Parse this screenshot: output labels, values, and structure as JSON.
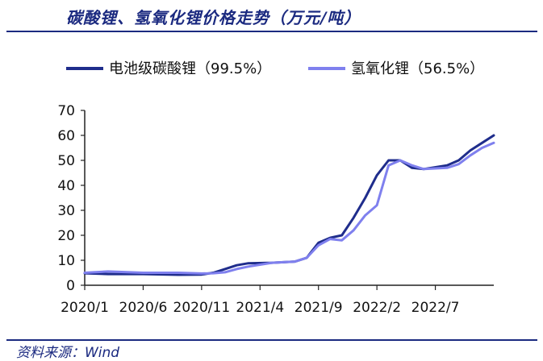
{
  "title": "碳酸锂、氢氧化锂价格走势（万元/吨）",
  "source": "资料来源：Wind",
  "chart_data": {
    "type": "line",
    "title": "碳酸锂、氢氧化锂价格走势（万元/吨）",
    "x_ticks": [
      "2020/1",
      "2020/6",
      "2020/11",
      "2021/4",
      "2021/9",
      "2022/2",
      "2022/7"
    ],
    "x_range": [
      "2020-01",
      "2022-12"
    ],
    "ylim": [
      0,
      70
    ],
    "y_ticks": [
      "0",
      "10",
      "20",
      "30",
      "40",
      "50",
      "60",
      "70"
    ],
    "grid": false,
    "legend_position": "top",
    "series": [
      {
        "name": "电池级碳酸锂（99.5%）",
        "color": "#1f2d8c",
        "points": [
          [
            "2020-01",
            4.8
          ],
          [
            "2020-03",
            4.5
          ],
          [
            "2020-06",
            4.5
          ],
          [
            "2020-09",
            4.2
          ],
          [
            "2020-11",
            4.3
          ],
          [
            "2020-12",
            5.0
          ],
          [
            "2021-01",
            6.5
          ],
          [
            "2021-02",
            8.0
          ],
          [
            "2021-03",
            8.8
          ],
          [
            "2021-05",
            9.0
          ],
          [
            "2021-07",
            9.5
          ],
          [
            "2021-08",
            11.0
          ],
          [
            "2021-09",
            17.0
          ],
          [
            "2021-10",
            19.0
          ],
          [
            "2021-11",
            20.0
          ],
          [
            "2021-12",
            27.0
          ],
          [
            "2022-01",
            35.0
          ],
          [
            "2022-02",
            44.0
          ],
          [
            "2022-03",
            50.0
          ],
          [
            "2022-04",
            50.0
          ],
          [
            "2022-05",
            47.0
          ],
          [
            "2022-06",
            46.5
          ],
          [
            "2022-08",
            48.0
          ],
          [
            "2022-09",
            50.0
          ],
          [
            "2022-10",
            54.0
          ],
          [
            "2022-11",
            57.0
          ],
          [
            "2022-12",
            60.0
          ]
        ]
      },
      {
        "name": "氢氧化锂（56.5%）",
        "color": "#7f80ee",
        "points": [
          [
            "2020-01",
            5.0
          ],
          [
            "2020-03",
            5.5
          ],
          [
            "2020-06",
            5.0
          ],
          [
            "2020-09",
            5.0
          ],
          [
            "2020-11",
            4.7
          ],
          [
            "2020-12",
            4.8
          ],
          [
            "2021-01",
            5.2
          ],
          [
            "2021-02",
            6.5
          ],
          [
            "2021-03",
            7.5
          ],
          [
            "2021-05",
            9.0
          ],
          [
            "2021-07",
            9.5
          ],
          [
            "2021-08",
            11.0
          ],
          [
            "2021-09",
            16.0
          ],
          [
            "2021-10",
            18.5
          ],
          [
            "2021-11",
            18.0
          ],
          [
            "2021-12",
            22.0
          ],
          [
            "2022-01",
            28.0
          ],
          [
            "2022-02",
            32.0
          ],
          [
            "2022-03",
            48.0
          ],
          [
            "2022-04",
            50.0
          ],
          [
            "2022-05",
            48.0
          ],
          [
            "2022-06",
            46.5
          ],
          [
            "2022-08",
            47.0
          ],
          [
            "2022-09",
            48.5
          ],
          [
            "2022-10",
            52.0
          ],
          [
            "2022-11",
            55.0
          ],
          [
            "2022-12",
            57.0
          ]
        ]
      }
    ]
  }
}
